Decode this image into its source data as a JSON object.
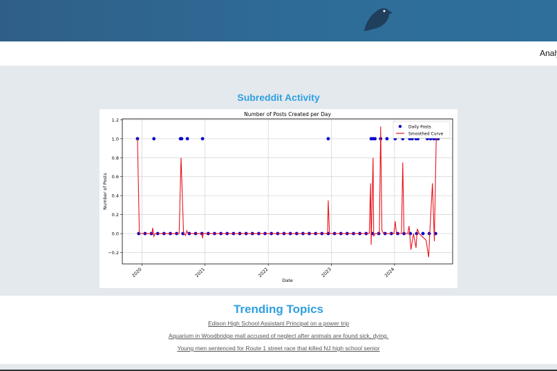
{
  "nav": {
    "item": "Analyt"
  },
  "section": {
    "title": "Subreddit Activity"
  },
  "chart_data": {
    "type": "line",
    "title": "Number of Posts Created per Day",
    "x_label": "Date",
    "y_label": "Number of Posts",
    "xlim": [
      2019.69,
      2024.92
    ],
    "xticks": [
      2020,
      2021,
      2022,
      2023,
      2024
    ],
    "ylim": [
      -0.32,
      1.21
    ],
    "yticks": [
      {
        "value": -0.2,
        "label": "−0.2"
      },
      {
        "value": 0,
        "label": "0.0"
      },
      0.2,
      0.4,
      0.6,
      0.8,
      {
        "value": 1,
        "label": "1.0"
      },
      1.2
    ],
    "grid": true,
    "legend": "upper right",
    "series": [
      {
        "name": "Daily Posts",
        "mode": "markers",
        "color": "#0000cc",
        "x": [
          2019.93,
          2020.19,
          2020.61,
          2020.63,
          2020.72,
          2020.96,
          2022.95,
          2023.63,
          2023.66,
          2023.69,
          2023.78,
          2023.88,
          2024.01,
          2024.13,
          2024.24,
          2024.28,
          2024.34,
          2024.37,
          2024.52,
          2024.57,
          2024.62,
          2024.66,
          2024.69,
          2019.95,
          2020.05,
          2020.15,
          2020.25,
          2020.35,
          2020.45,
          2020.55,
          2020.65,
          2020.75,
          2020.85,
          2020.95,
          2021.05,
          2021.15,
          2021.25,
          2021.35,
          2021.45,
          2021.55,
          2021.65,
          2021.75,
          2021.85,
          2021.95,
          2022.05,
          2022.15,
          2022.25,
          2022.35,
          2022.45,
          2022.55,
          2022.65,
          2022.75,
          2022.85,
          2022.95,
          2023.05,
          2023.15,
          2023.25,
          2023.35,
          2023.45,
          2023.55,
          2023.65,
          2023.75,
          2023.85,
          2023.95,
          2024.05,
          2024.15,
          2024.25,
          2024.35,
          2024.45,
          2024.55,
          2024.65
        ],
        "values": [
          1,
          1,
          1,
          1,
          1,
          1,
          1,
          1,
          1,
          1,
          1,
          1,
          1,
          1,
          1,
          1,
          1,
          1,
          1,
          1,
          1,
          1,
          1,
          0,
          0,
          0,
          0,
          0,
          0,
          0,
          0,
          0,
          0,
          0,
          0,
          0,
          0,
          0,
          0,
          0,
          0,
          0,
          0,
          0,
          0,
          0,
          0,
          0,
          0,
          0,
          0,
          0,
          0,
          0,
          0,
          0,
          0,
          0,
          0,
          0,
          0,
          0,
          0,
          0,
          0,
          0,
          0,
          0,
          0,
          0,
          0
        ]
      },
      {
        "name": "Smoothed Curve",
        "mode": "line",
        "color": "#e8141c",
        "x": [
          2019.93,
          2019.96,
          2020.16,
          2020.17,
          2020.19,
          2020.21,
          2020.59,
          2020.62,
          2020.66,
          2020.69,
          2020.71,
          2020.73,
          2020.95,
          2020.96,
          2020.97,
          2022.94,
          2022.95,
          2022.97,
          2023.6,
          2023.62,
          2023.63,
          2023.66,
          2023.67,
          2023.69,
          2023.76,
          2023.78,
          2023.8,
          2023.83,
          2023.99,
          2024.01,
          2024.03,
          2024.11,
          2024.13,
          2024.15,
          2024.21,
          2024.23,
          2024.26,
          2024.3,
          2024.34,
          2024.36,
          2024.39,
          2024.5,
          2024.54,
          2024.56,
          2024.6,
          2024.63,
          2024.66,
          2024.68
        ],
        "values": [
          1,
          0,
          0,
          0.06,
          -0.03,
          0,
          0,
          0.8,
          0,
          -0.02,
          0.03,
          0,
          0,
          -0.05,
          0,
          0,
          0.35,
          0,
          0,
          0.53,
          -0.12,
          0.8,
          -0.03,
          0,
          0,
          1.13,
          0.03,
          0,
          0,
          0.13,
          0,
          0,
          0.75,
          0,
          0,
          0.08,
          -0.17,
          0,
          -0.15,
          0.05,
          0,
          -0.07,
          -0.25,
          0.03,
          0.53,
          -0.08,
          1,
          1
        ]
      }
    ]
  },
  "trending": {
    "title": "Trending Topics",
    "links": [
      "Edison High School Assistant Principal on a power trip",
      "Aquarium in Woodbridge mall accused of neglect after animals are found sick, dying.",
      "Young men sentenced for Route 1 street race that killed NJ high school senior"
    ]
  }
}
